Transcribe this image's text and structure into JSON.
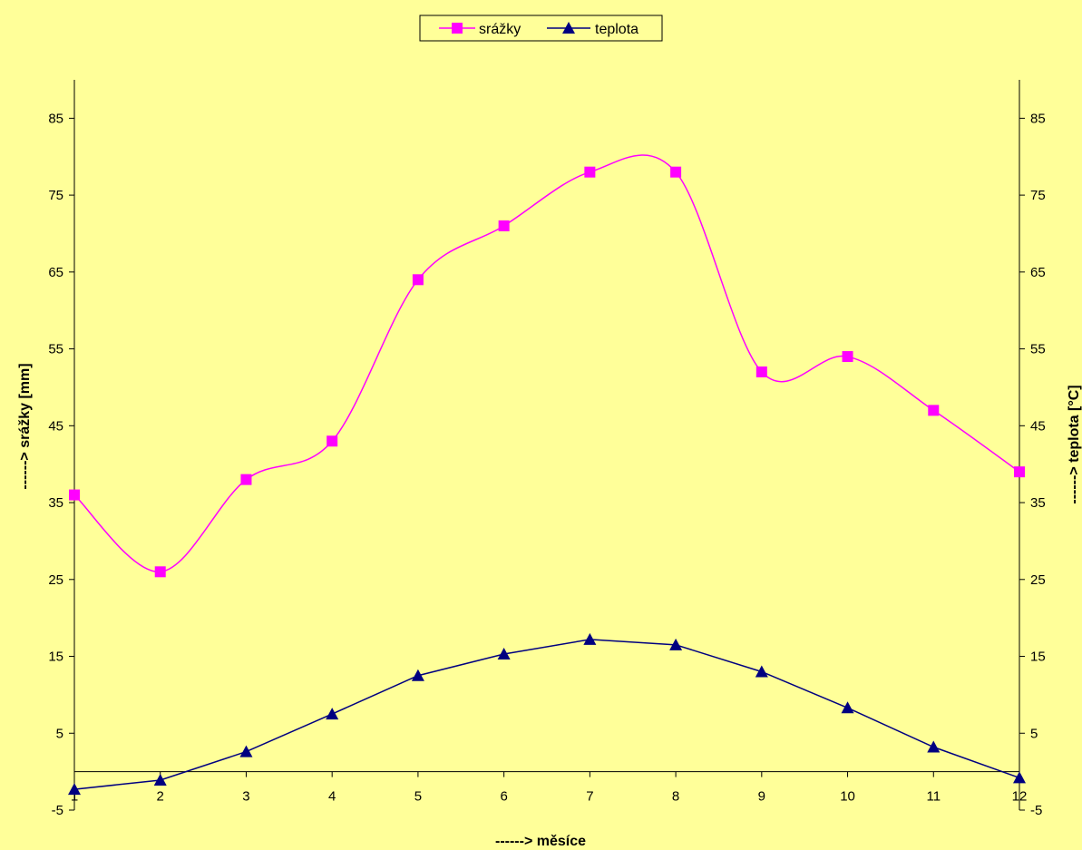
{
  "chart_data": {
    "type": "line",
    "x": [
      1,
      2,
      3,
      4,
      5,
      6,
      7,
      8,
      9,
      10,
      11,
      12
    ],
    "xticks": [
      "1",
      "2",
      "3",
      "4",
      "5",
      "6",
      "7",
      "8",
      "9",
      "10",
      "11",
      "12"
    ],
    "xlabel": "------> měsíce",
    "ylabel_left": "------> srážky [mm]",
    "ylabel_right": "------> teplota [°C]",
    "ylim": [
      -5,
      90
    ],
    "yticks": [
      -5,
      5,
      15,
      25,
      35,
      45,
      55,
      65,
      75,
      85
    ],
    "legend_position": "top",
    "series": [
      {
        "name": "srážky",
        "axis": "left",
        "color": "#FF00FF",
        "marker": "square",
        "values": [
          36,
          26,
          38,
          43,
          64,
          71,
          78,
          78,
          52,
          54,
          47,
          39
        ]
      },
      {
        "name": "teplota",
        "axis": "right",
        "color": "#000080",
        "marker": "triangle",
        "values": [
          -2.3,
          -1.1,
          2.6,
          7.5,
          12.5,
          15.3,
          17.2,
          16.5,
          13.0,
          8.3,
          3.2,
          -0.8
        ]
      }
    ]
  }
}
